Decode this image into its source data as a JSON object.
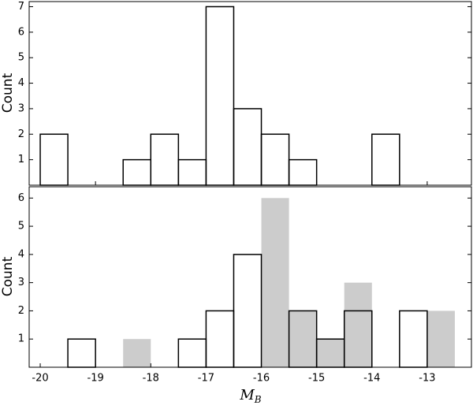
{
  "chart_data": [
    {
      "type": "histogram",
      "ylabel": "Count",
      "bins": [
        -20,
        -19.5,
        -19,
        -18.5,
        -18,
        -17.5,
        -17,
        -16.5,
        -16,
        -15.5,
        -15,
        -14.5,
        -14,
        -13.5,
        -13,
        -12.5
      ],
      "xlim": [
        -20.2,
        -12.2
      ],
      "ylim": [
        0,
        7.2
      ],
      "yticks": [
        1,
        2,
        3,
        4,
        5,
        6,
        7
      ],
      "series": [
        {
          "color": "#000000",
          "histtype": "step",
          "values": [
            2,
            0,
            0,
            1,
            2,
            1,
            7,
            3,
            2,
            1,
            0,
            0,
            2,
            0,
            0
          ]
        }
      ]
    },
    {
      "type": "histogram",
      "ylabel": "Count",
      "xlabel": "M",
      "xlabel_sub": "B",
      "bins": [
        -20,
        -19.5,
        -19,
        -18.5,
        -18,
        -17.5,
        -17,
        -16.5,
        -16,
        -15.5,
        -15,
        -14.5,
        -14,
        -13.5,
        -13,
        -12.5
      ],
      "xlim": [
        -20.2,
        -12.2
      ],
      "xticks": [
        -20,
        -19,
        -18,
        -17,
        -16,
        -15,
        -14,
        -13
      ],
      "ylim": [
        0,
        6.4
      ],
      "yticks": [
        1,
        2,
        3,
        4,
        5,
        6
      ],
      "series": [
        {
          "color": "#cccccc",
          "histtype": "stepfilled",
          "values": [
            0,
            0,
            0,
            1,
            0,
            0,
            0,
            0,
            6,
            2,
            1,
            3,
            0,
            0,
            2
          ]
        },
        {
          "color": "#000000",
          "histtype": "step",
          "values": [
            0,
            1,
            0,
            0,
            0,
            1,
            2,
            4,
            0,
            2,
            1,
            2,
            0,
            2,
            0
          ]
        }
      ]
    }
  ]
}
